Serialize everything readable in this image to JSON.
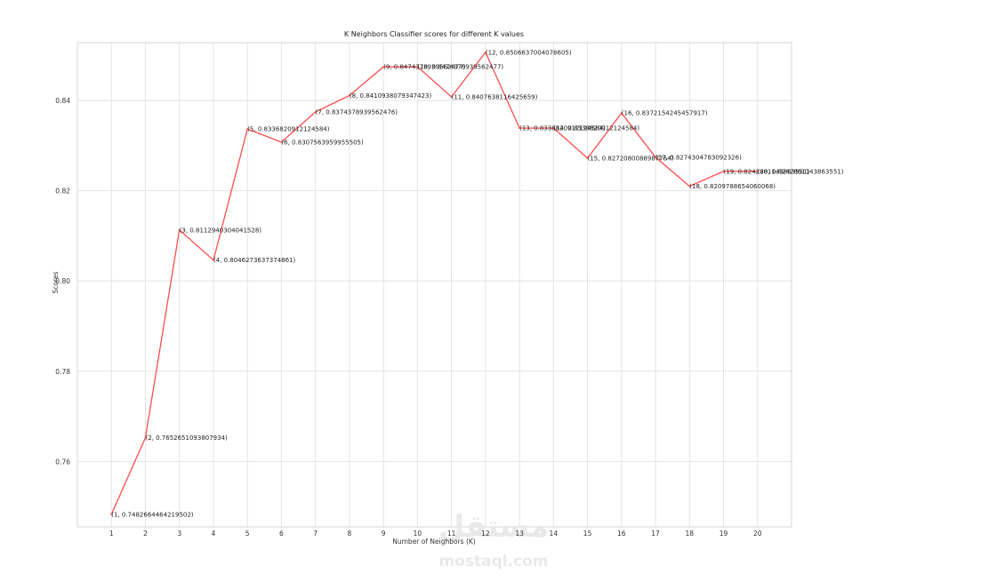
{
  "chart_data": {
    "type": "line",
    "title": "K Neighbors Classifier scores for different K values",
    "xlabel": "Number of Neighbors (K)",
    "ylabel": "Scores",
    "x": [
      1,
      2,
      3,
      4,
      5,
      6,
      7,
      8,
      9,
      10,
      11,
      12,
      13,
      14,
      15,
      16,
      17,
      18,
      19,
      20
    ],
    "series": [
      {
        "values": [
          0.7482664464219502,
          0.7652651093807934,
          0.8112940304041528,
          0.8046273637374861,
          0.8336820912124584,
          0.8307563959955505,
          0.8374378939562476,
          0.8410938079347423,
          0.8474378939562477,
          0.8474378939562477,
          0.8407638116425659,
          0.8506637004078605,
          0.8338820912124584,
          0.8338820912124584,
          0.8272080088987764,
          0.8372154245457917,
          0.8274304783092326,
          0.8209788654060068,
          0.8242861143863551,
          0.8242861143863551
        ]
      }
    ],
    "point_labels": [
      "(1, 0.7482664464219502)",
      "(2, 0.7652651093807934)",
      "(3, 0.8112940304041528)",
      "(4, 0.8046273637374861)",
      "(5, 0.8336820912124584)",
      "(6, 0.8307563959955505)",
      "(7, 0.8374378939562476)",
      "(8, 0.8410938079347423)",
      "(9, 0.8474378939562477)",
      "(10, 0.8474378939562477)",
      "(11, 0.8407638116425659)",
      "(12, 0.8506637004078605)",
      "(13, 0.8338820912124584)",
      "(14, 0.8338820912124584)",
      "(15, 0.8272080088987764)",
      "(16, 0.8372154245457917)",
      "(17, 0.8274304783092326)",
      "(18, 0.8209788654060068)",
      "(19, 0.8242861143863551)",
      "(20, 0.8242861143863551)"
    ],
    "x_ticks": [
      "1",
      "2",
      "3",
      "4",
      "5",
      "6",
      "7",
      "8",
      "9",
      "10",
      "11",
      "12",
      "13",
      "14",
      "15",
      "16",
      "17",
      "18",
      "19",
      "20"
    ],
    "y_ticks": [
      0.76,
      0.78,
      0.8,
      0.82,
      0.84
    ],
    "y_tick_labels": [
      "0.76",
      "0.78",
      "0.80",
      "0.82",
      "0.84"
    ],
    "xlim": [
      0,
      21
    ],
    "ylim": [
      0.7455,
      0.8528
    ],
    "grid": true,
    "legend": "none",
    "line_color": "#ff4d4d",
    "grid_color": "#e3e3e3"
  },
  "watermark": {
    "logo": "مستقل",
    "text": "mostaql.com"
  }
}
